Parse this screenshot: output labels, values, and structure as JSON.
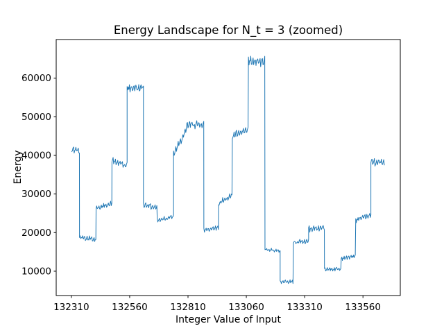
{
  "figure": {
    "background": "#ffffff",
    "frame_color": "#000000"
  },
  "chart_data": {
    "type": "line",
    "title": "Energy Landscape for N_t = 3 (zoomed)",
    "xlabel": "Integer Value of Input",
    "ylabel": "Energy",
    "line_color": "#1f77b4",
    "grid": false,
    "legend": null,
    "xlim": [
      132245,
      133720
    ],
    "ylim": [
      3700,
      70000
    ],
    "xticks": [
      132310,
      132560,
      132810,
      133060,
      133310,
      133560
    ],
    "yticks": [
      10000,
      20000,
      30000,
      40000,
      50000,
      60000
    ],
    "x_range_of_data": [
      132312,
      133652
    ],
    "y_min_approx": 6600,
    "y_max_approx": 66500,
    "noise": {
      "seed": 42,
      "step": 2.5,
      "saw_period": 10,
      "saw_weight": 0.55,
      "jitter_weight": 0.3,
      "slow_period": 31,
      "slow_weight": 0.15
    },
    "segments": [
      {
        "x0": 132312,
        "x1": 132345,
        "y0": 41500,
        "y1": 41000,
        "amp": 1400
      },
      {
        "x0": 132345,
        "x1": 132416,
        "y0": 19000,
        "y1": 18400,
        "amp": 1000
      },
      {
        "x0": 132416,
        "x1": 132484,
        "y0": 26300,
        "y1": 27600,
        "amp": 1000
      },
      {
        "x0": 132484,
        "x1": 132549,
        "y0": 38600,
        "y1": 37200,
        "amp": 1300
      },
      {
        "x0": 132549,
        "x1": 132619,
        "y0": 57400,
        "y1": 57400,
        "amp": 1500
      },
      {
        "x0": 132619,
        "x1": 132678,
        "y0": 27300,
        "y1": 26400,
        "amp": 1100
      },
      {
        "x0": 132678,
        "x1": 132748,
        "y0": 23300,
        "y1": 24200,
        "amp": 900
      },
      {
        "x0": 132748,
        "x1": 132805,
        "y0": 40500,
        "y1": 46800,
        "amp": 1300
      },
      {
        "x0": 132805,
        "x1": 132878,
        "y0": 48200,
        "y1": 48200,
        "amp": 1500
      },
      {
        "x0": 132878,
        "x1": 132941,
        "y0": 20700,
        "y1": 21500,
        "amp": 900
      },
      {
        "x0": 132941,
        "x1": 133000,
        "y0": 27500,
        "y1": 29800,
        "amp": 1100
      },
      {
        "x0": 133000,
        "x1": 133069,
        "y0": 45200,
        "y1": 46800,
        "amp": 1400
      },
      {
        "x0": 133069,
        "x1": 133140,
        "y0": 64200,
        "y1": 64200,
        "amp": 1900
      },
      {
        "x0": 133140,
        "x1": 133205,
        "y0": 15800,
        "y1": 15300,
        "amp": 650
      },
      {
        "x0": 133205,
        "x1": 133262,
        "y0": 7400,
        "y1": 7400,
        "amp": 750
      },
      {
        "x0": 133262,
        "x1": 133327,
        "y0": 17400,
        "y1": 17700,
        "amp": 1000
      },
      {
        "x0": 133327,
        "x1": 133395,
        "y0": 20900,
        "y1": 21200,
        "amp": 1100
      },
      {
        "x0": 133395,
        "x1": 133467,
        "y0": 10600,
        "y1": 10700,
        "amp": 750
      },
      {
        "x0": 133467,
        "x1": 133529,
        "y0": 13200,
        "y1": 13900,
        "amp": 800
      },
      {
        "x0": 133529,
        "x1": 133594,
        "y0": 23200,
        "y1": 24500,
        "amp": 1000
      },
      {
        "x0": 133594,
        "x1": 133652,
        "y0": 38300,
        "y1": 38100,
        "amp": 1300
      }
    ]
  }
}
